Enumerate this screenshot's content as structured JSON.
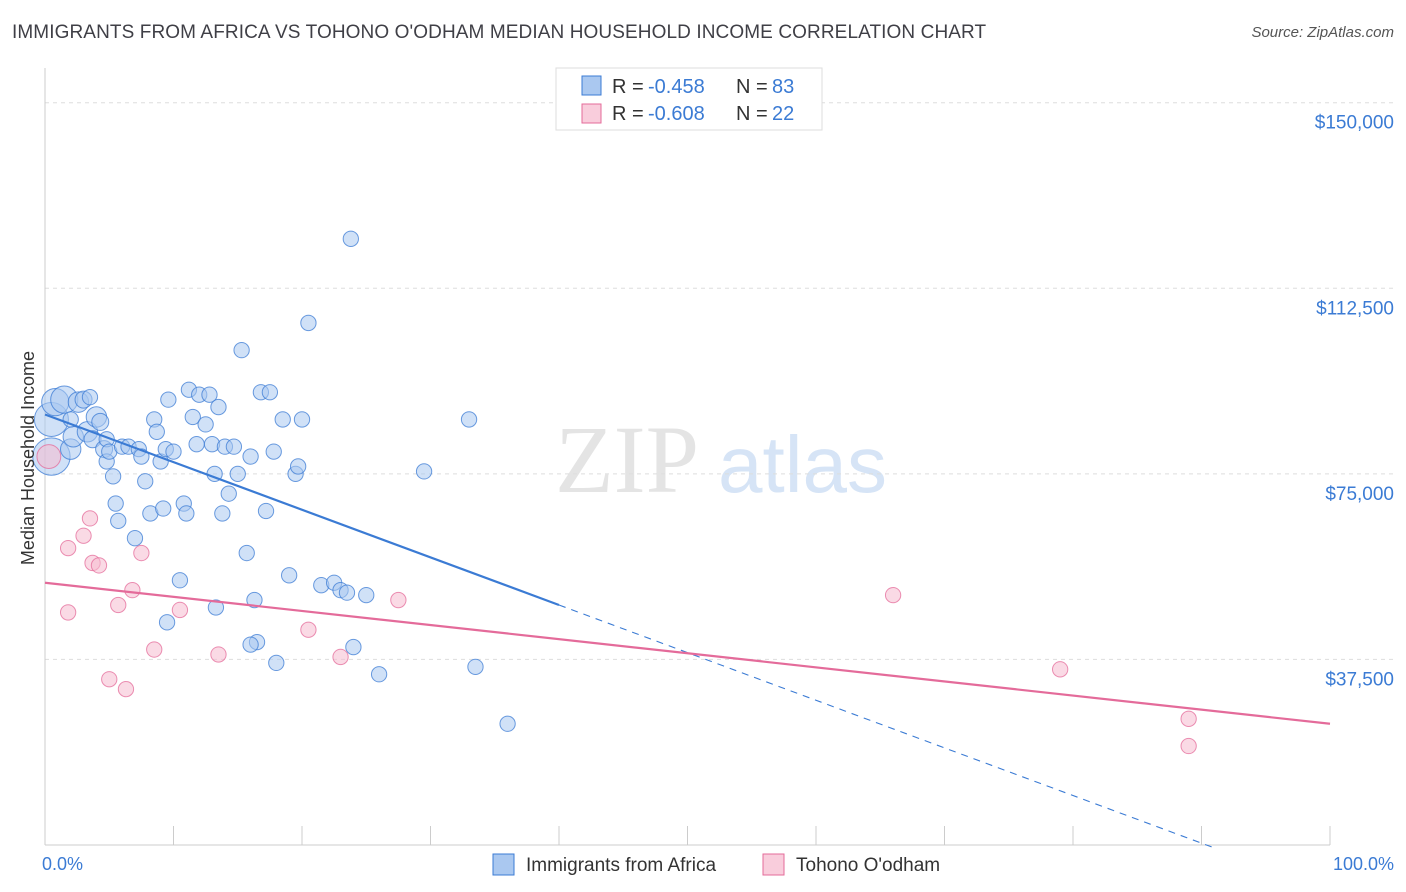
{
  "title": "IMMIGRANTS FROM AFRICA VS TOHONO O'ODHAM MEDIAN HOUSEHOLD INCOME CORRELATION CHART",
  "source": "Source: ZipAtlas.com",
  "watermark": {
    "zip": "ZIP",
    "atlas": "atlas"
  },
  "colors": {
    "blue": "#3b7bd4",
    "pink": "#e46b9a",
    "blue_fill": "#aac8f0",
    "pink_fill": "#f5bcd0",
    "grid": "#dddddd"
  },
  "legend": {
    "items": [
      {
        "r_label": "R = ",
        "r_value": "-0.458",
        "n_label": "N = ",
        "n_value": "83"
      },
      {
        "r_label": "R = ",
        "r_value": "-0.608",
        "n_label": "N = ",
        "n_value": "22"
      }
    ]
  },
  "chart_data": {
    "type": "scatter",
    "ylabel": "Median Household Income",
    "x_range": [
      0,
      100
    ],
    "y_range": [
      0,
      155000
    ],
    "x_tick_labels": [
      "0.0%",
      "100.0%"
    ],
    "y_ticks": [
      {
        "value": 37500,
        "label": "$37,500"
      },
      {
        "value": 75000,
        "label": "$75,000"
      },
      {
        "value": 112500,
        "label": "$112,500"
      },
      {
        "value": 150000,
        "label": "$150,000"
      }
    ],
    "series": [
      {
        "name": "Immigrants from Africa",
        "color": "#3b7bd4",
        "trend": {
          "x0": 0,
          "y0": 87000,
          "x1": 40,
          "y1": 48500,
          "dash_to_x": 100,
          "dash_to_y": -9000
        },
        "points": [
          [
            0.5,
            78500,
            22
          ],
          [
            0.5,
            86000,
            20
          ],
          [
            0.8,
            89500,
            16
          ],
          [
            1.5,
            90000,
            16
          ],
          [
            2,
            80000,
            12
          ],
          [
            2.2,
            82500,
            12
          ],
          [
            2.6,
            89500,
            12
          ],
          [
            3,
            90000,
            10
          ],
          [
            3.3,
            83500,
            12
          ],
          [
            3.7,
            82000,
            10
          ],
          [
            4,
            86500,
            12
          ],
          [
            4.3,
            85500,
            10
          ],
          [
            4.6,
            80000,
            10
          ],
          [
            4.8,
            82000,
            9
          ],
          [
            4.8,
            77500,
            9
          ],
          [
            5,
            79500,
            9
          ],
          [
            5.3,
            74500,
            9
          ],
          [
            5.5,
            69000,
            9
          ],
          [
            5.7,
            65500,
            9
          ],
          [
            6,
            80500,
            9
          ],
          [
            6.5,
            80500,
            9
          ],
          [
            7,
            62000,
            9
          ],
          [
            7.3,
            80000,
            9
          ],
          [
            7.5,
            78500,
            9
          ],
          [
            7.8,
            73500,
            9
          ],
          [
            8.2,
            67000,
            9
          ],
          [
            8.5,
            86000,
            9
          ],
          [
            8.7,
            83500,
            9
          ],
          [
            9,
            77500,
            9
          ],
          [
            9.2,
            68000,
            9
          ],
          [
            9.4,
            80000,
            9
          ],
          [
            9.6,
            90000,
            9
          ],
          [
            10,
            79500,
            9
          ],
          [
            10.5,
            53500,
            9
          ],
          [
            10.8,
            69000,
            9
          ],
          [
            11,
            67000,
            9
          ],
          [
            11.2,
            92000,
            9
          ],
          [
            11.5,
            86500,
            9
          ],
          [
            11.8,
            81000,
            9
          ],
          [
            12,
            91000,
            9
          ],
          [
            12.5,
            85000,
            9
          ],
          [
            12.8,
            91000,
            9
          ],
          [
            13,
            81000,
            9
          ],
          [
            13.2,
            75000,
            9
          ],
          [
            13.5,
            88500,
            9
          ],
          [
            13.8,
            67000,
            9
          ],
          [
            14,
            80500,
            9
          ],
          [
            14.3,
            71000,
            9
          ],
          [
            14.7,
            80500,
            9
          ],
          [
            15,
            75000,
            9
          ],
          [
            15.3,
            100000,
            9
          ],
          [
            15.7,
            59000,
            9
          ],
          [
            16,
            78500,
            9
          ],
          [
            16.3,
            49500,
            9
          ],
          [
            16.5,
            41000,
            9
          ],
          [
            16.8,
            91500,
            9
          ],
          [
            17.2,
            67500,
            9
          ],
          [
            17.5,
            91500,
            9
          ],
          [
            17.8,
            79500,
            9
          ],
          [
            18.5,
            86000,
            9
          ],
          [
            19,
            54500,
            9
          ],
          [
            19.5,
            75000,
            9
          ],
          [
            19.7,
            76500,
            9
          ],
          [
            20,
            86000,
            9
          ],
          [
            20.5,
            105500,
            9
          ],
          [
            21.5,
            52500,
            9
          ],
          [
            22.5,
            53000,
            9
          ],
          [
            23.0,
            51500,
            9
          ],
          [
            23.5,
            51000,
            9
          ],
          [
            23.8,
            122500,
            9
          ],
          [
            24,
            40000,
            9
          ],
          [
            25,
            50500,
            9
          ],
          [
            26,
            34500,
            9
          ],
          [
            29.5,
            75500,
            9
          ],
          [
            33,
            86000,
            9
          ],
          [
            33.5,
            36000,
            9
          ],
          [
            36,
            24500,
            9
          ],
          [
            13.3,
            48000,
            9
          ],
          [
            18.0,
            36800,
            9
          ],
          [
            9.5,
            45000,
            9
          ],
          [
            16.0,
            40500,
            9
          ],
          [
            2.0,
            86000,
            9
          ],
          [
            3.5,
            90500,
            9
          ]
        ]
      },
      {
        "name": "Tohono O'odham",
        "color": "#e46b9a",
        "trend": {
          "x0": 0,
          "y0": 53000,
          "x1": 100,
          "y1": 24500
        },
        "points": [
          [
            0.3,
            78500,
            14
          ],
          [
            1.8,
            60000,
            9
          ],
          [
            3.0,
            62500,
            9
          ],
          [
            3.5,
            66000,
            9
          ],
          [
            3.7,
            57000,
            9
          ],
          [
            4.2,
            56500,
            9
          ],
          [
            5.0,
            33500,
            9
          ],
          [
            5.7,
            48500,
            9
          ],
          [
            6.3,
            31500,
            9
          ],
          [
            6.8,
            51500,
            9
          ],
          [
            7.5,
            59000,
            9
          ],
          [
            8.5,
            39500,
            9
          ],
          [
            10.5,
            47500,
            9
          ],
          [
            13.5,
            38500,
            9
          ],
          [
            20.5,
            43500,
            9
          ],
          [
            23,
            38000,
            9
          ],
          [
            27.5,
            49500,
            9
          ],
          [
            66,
            50500,
            9
          ],
          [
            79,
            35500,
            9
          ],
          [
            89,
            25500,
            9
          ],
          [
            89,
            20000,
            9
          ],
          [
            1.8,
            47000,
            9
          ]
        ]
      }
    ]
  }
}
